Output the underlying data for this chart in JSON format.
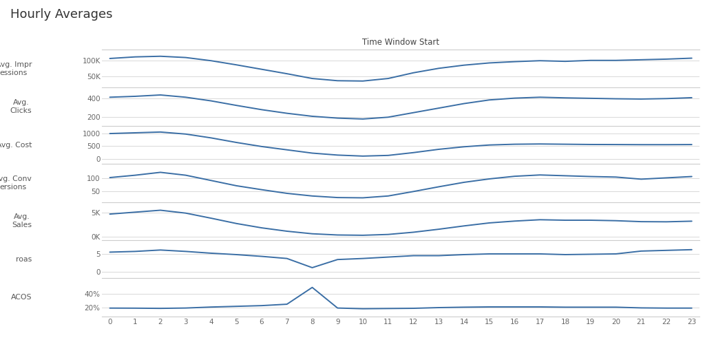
{
  "title": "Hourly Averages",
  "x_label": "Time Window Start",
  "hours": [
    0,
    1,
    2,
    3,
    4,
    5,
    6,
    7,
    8,
    9,
    10,
    11,
    12,
    13,
    14,
    15,
    16,
    17,
    18,
    19,
    20,
    21,
    22,
    23
  ],
  "line_color": "#3a6ea5",
  "background_color": "#ffffff",
  "subplots": [
    {
      "label": "Avg. Impr\nessions",
      "yticks": [
        50000,
        100000
      ],
      "yticklabels": [
        "50K",
        "100K"
      ],
      "ylim": [
        15000,
        135000
      ],
      "data": [
        107000,
        112000,
        114000,
        110000,
        100000,
        87000,
        73000,
        59000,
        44000,
        37000,
        36000,
        44000,
        62000,
        76000,
        86000,
        93000,
        97000,
        100000,
        98000,
        101000,
        101000,
        103000,
        105000,
        108000
      ]
    },
    {
      "label": "Avg.\nClicks",
      "yticks": [
        200,
        400
      ],
      "yticklabels": [
        "200",
        "400"
      ],
      "ylim": [
        100,
        520
      ],
      "data": [
        415,
        425,
        440,
        415,
        375,
        325,
        278,
        238,
        205,
        185,
        175,
        195,
        245,
        295,
        345,
        385,
        405,
        415,
        408,
        403,
        398,
        395,
        400,
        410
      ]
    },
    {
      "label": "Avg. Cost",
      "yticks": [
        0,
        500,
        1000
      ],
      "yticklabels": [
        "0",
        "500",
        "1000"
      ],
      "ylim": [
        -200,
        1300
      ],
      "data": [
        995,
        1025,
        1055,
        975,
        825,
        645,
        485,
        355,
        225,
        148,
        108,
        135,
        245,
        375,
        475,
        545,
        575,
        585,
        575,
        565,
        562,
        558,
        558,
        562
      ]
    },
    {
      "label": "Avg. Conv\nersions",
      "yticks": [
        50,
        100
      ],
      "yticklabels": [
        "50",
        "100"
      ],
      "ylim": [
        10,
        155
      ],
      "data": [
        103,
        112,
        123,
        112,
        92,
        72,
        57,
        43,
        33,
        27,
        26,
        33,
        50,
        68,
        85,
        98,
        108,
        113,
        110,
        107,
        105,
        97,
        102,
        107
      ]
    },
    {
      "label": "Avg.\nSales",
      "yticks": [
        0,
        5000
      ],
      "yticklabels": [
        "0K",
        "5K"
      ],
      "ylim": [
        -700,
        7200
      ],
      "data": [
        4700,
        5100,
        5500,
        4900,
        3850,
        2750,
        1850,
        1150,
        620,
        370,
        310,
        480,
        940,
        1560,
        2250,
        2870,
        3250,
        3530,
        3430,
        3430,
        3330,
        3130,
        3100,
        3230
      ]
    },
    {
      "label": "roas",
      "yticks": [
        0,
        5
      ],
      "yticklabels": [
        "0",
        "5"
      ],
      "ylim": [
        -1.8,
        9.0
      ],
      "data": [
        5.6,
        5.8,
        6.2,
        5.8,
        5.3,
        4.9,
        4.4,
        3.8,
        1.2,
        3.5,
        3.8,
        4.2,
        4.6,
        4.6,
        4.9,
        5.1,
        5.1,
        5.1,
        4.9,
        5.0,
        5.1,
        5.9,
        6.1,
        6.3
      ]
    },
    {
      "label": "ACOS",
      "yticks": [
        0.2,
        0.4
      ],
      "yticklabels": [
        "20%",
        "40%"
      ],
      "ylim": [
        0.08,
        0.62
      ],
      "data": [
        0.197,
        0.196,
        0.193,
        0.198,
        0.212,
        0.222,
        0.232,
        0.252,
        0.49,
        0.198,
        0.188,
        0.191,
        0.194,
        0.204,
        0.21,
        0.214,
        0.214,
        0.214,
        0.21,
        0.21,
        0.21,
        0.2,
        0.197,
        0.197
      ]
    }
  ]
}
